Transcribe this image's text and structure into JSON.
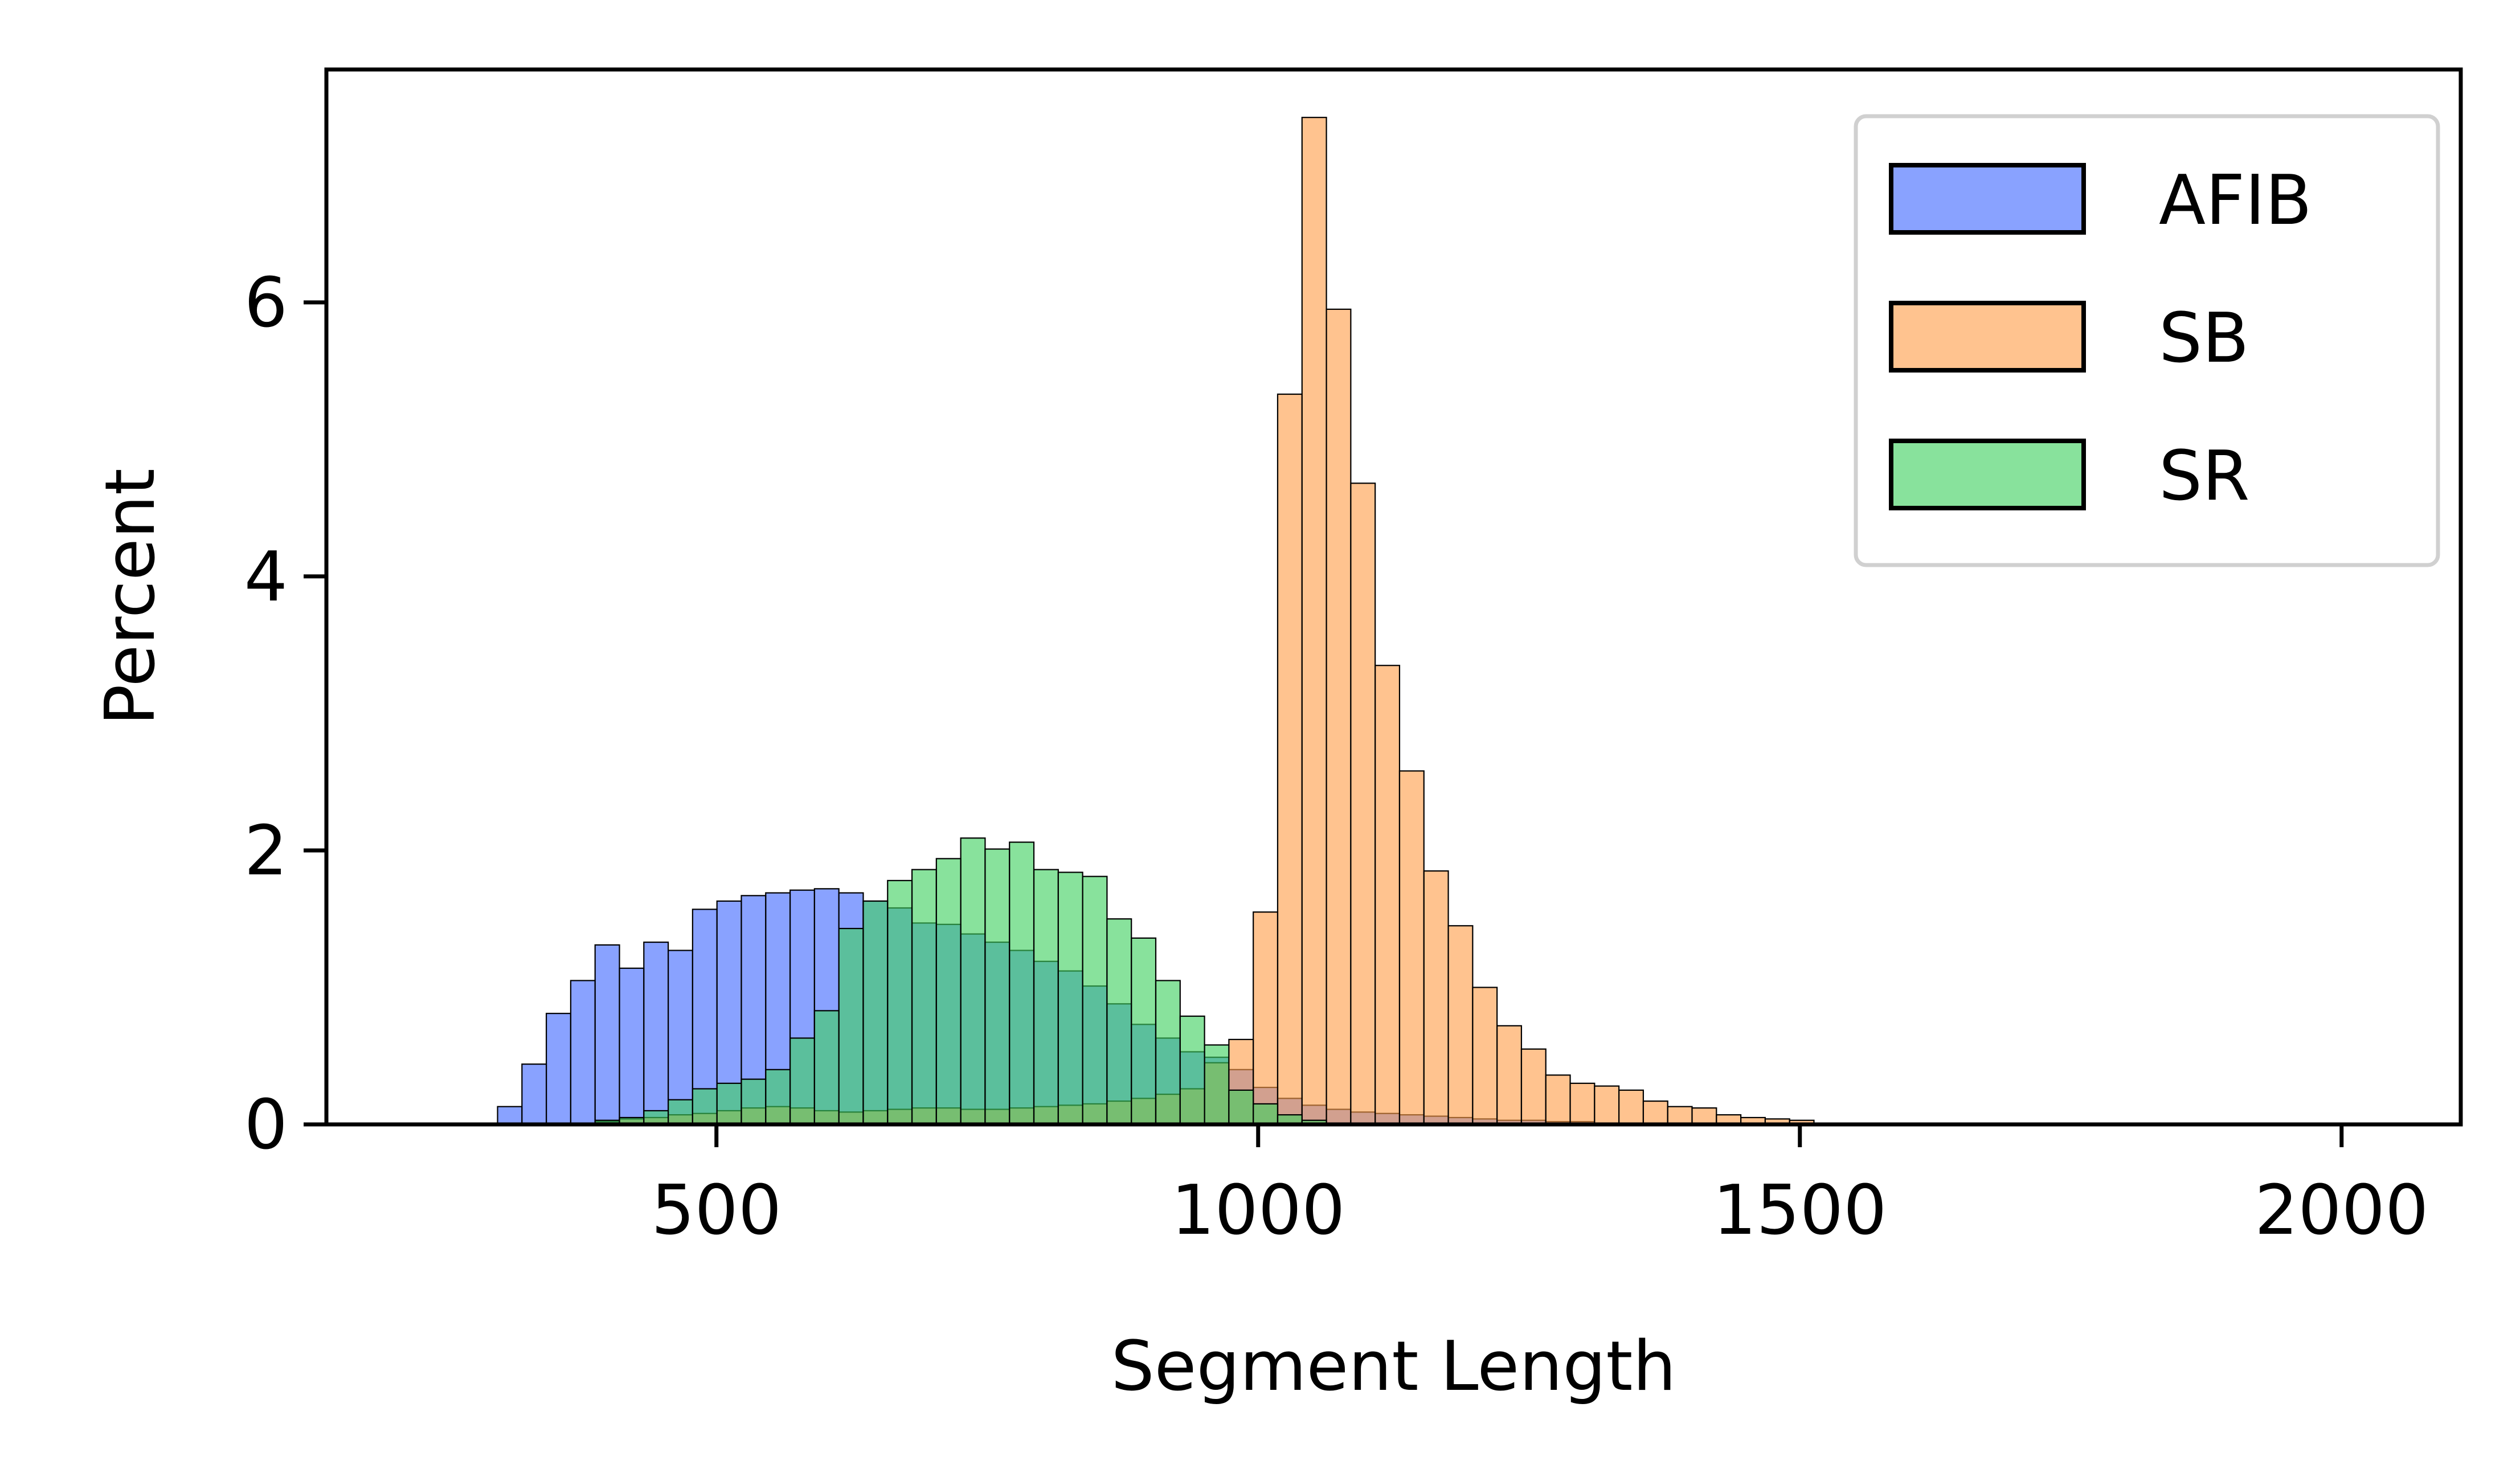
{
  "chart_data": {
    "type": "bar",
    "title": "",
    "xlabel": "Segment Length",
    "ylabel": "Percent",
    "xlim": [
      140,
      2110
    ],
    "ylim": [
      0,
      7.7
    ],
    "xticks": [
      500,
      1000,
      1500,
      2000
    ],
    "yticks": [
      0,
      2,
      4,
      6
    ],
    "grid": false,
    "legend_position": "top-right",
    "bin_width": 22.5,
    "series": [
      {
        "name": "AFIB",
        "color": "#4169ff",
        "bin_starts": [
          298,
          320.5,
          343,
          365.5,
          388,
          410.5,
          433,
          455.5,
          478,
          500.5,
          523,
          545.5,
          568,
          590.5,
          613,
          635.5,
          658,
          680.5,
          703,
          725.5,
          748,
          770.5,
          793,
          815.5,
          838,
          860.5,
          883,
          905.5,
          928,
          950.5,
          973,
          995.5,
          1018,
          1040.5,
          1063,
          1085.5,
          1108,
          1130.5,
          1153,
          1175.5,
          1198,
          1220.5,
          1243,
          1265.5,
          1288,
          1310.5
        ],
        "values": [
          0.13,
          0.44,
          0.81,
          1.05,
          1.31,
          1.14,
          1.33,
          1.27,
          1.57,
          1.63,
          1.67,
          1.69,
          1.71,
          1.72,
          1.69,
          1.63,
          1.58,
          1.47,
          1.46,
          1.39,
          1.33,
          1.27,
          1.19,
          1.12,
          1.01,
          0.88,
          0.73,
          0.63,
          0.53,
          0.49,
          0.4,
          0.27,
          0.19,
          0.14,
          0.11,
          0.09,
          0.08,
          0.07,
          0.06,
          0.05,
          0.04,
          0.03,
          0.03,
          0.02,
          0.02,
          0.01
        ]
      },
      {
        "name": "SB",
        "color": "#ff9e4a",
        "bin_starts": [
          388,
          410.5,
          433,
          455.5,
          478,
          500.5,
          523,
          545.5,
          568,
          590.5,
          613,
          635.5,
          658,
          680.5,
          703,
          725.5,
          748,
          770.5,
          793,
          815.5,
          838,
          860.5,
          883,
          905.5,
          928,
          950.5,
          973,
          995.5,
          1018,
          1040.5,
          1063,
          1085.5,
          1108,
          1130.5,
          1153,
          1175.5,
          1198,
          1220.5,
          1243,
          1265.5,
          1288,
          1310.5,
          1333,
          1355.5,
          1378,
          1400.5,
          1423,
          1445.5,
          1468,
          1490.5
        ],
        "values": [
          0.02,
          0.04,
          0.05,
          0.07,
          0.08,
          0.1,
          0.12,
          0.13,
          0.12,
          0.1,
          0.09,
          0.1,
          0.11,
          0.12,
          0.12,
          0.11,
          0.11,
          0.12,
          0.13,
          0.14,
          0.15,
          0.17,
          0.19,
          0.22,
          0.26,
          0.45,
          0.62,
          1.55,
          5.33,
          7.35,
          5.95,
          4.68,
          3.35,
          2.58,
          1.85,
          1.45,
          1.0,
          0.72,
          0.55,
          0.36,
          0.3,
          0.28,
          0.25,
          0.17,
          0.13,
          0.12,
          0.07,
          0.05,
          0.04,
          0.03
        ]
      },
      {
        "name": "SR",
        "color": "#3fd05f",
        "bin_starts": [
          388,
          410.5,
          433,
          455.5,
          478,
          500.5,
          523,
          545.5,
          568,
          590.5,
          613,
          635.5,
          658,
          680.5,
          703,
          725.5,
          748,
          770.5,
          793,
          815.5,
          838,
          860.5,
          883,
          905.5,
          928,
          950.5,
          973,
          995.5,
          1018,
          1040.5,
          1063
        ],
        "values": [
          0.03,
          0.05,
          0.1,
          0.18,
          0.26,
          0.3,
          0.33,
          0.4,
          0.63,
          0.83,
          1.43,
          1.63,
          1.78,
          1.86,
          1.94,
          2.09,
          2.01,
          2.06,
          1.86,
          1.84,
          1.81,
          1.5,
          1.36,
          1.05,
          0.79,
          0.58,
          0.25,
          0.15,
          0.07,
          0.03,
          0.01
        ]
      }
    ],
    "legend": [
      "AFIB",
      "SB",
      "SR"
    ]
  }
}
